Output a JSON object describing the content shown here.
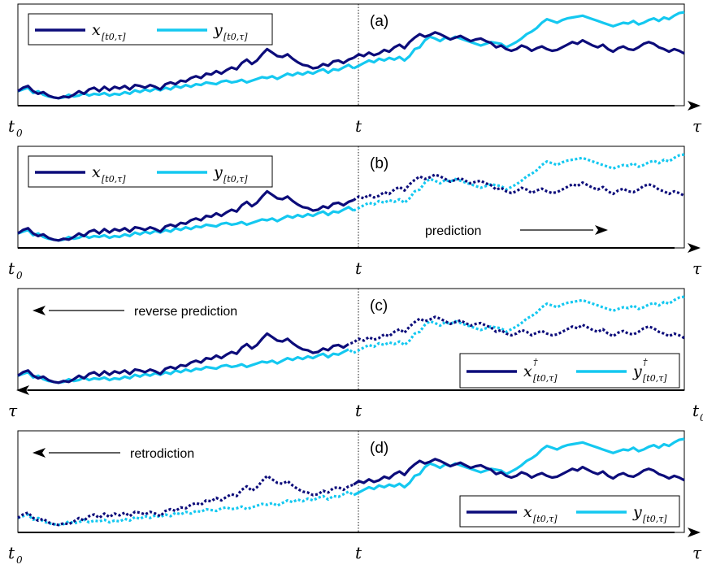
{
  "colors": {
    "x": "#0c0c7a",
    "y": "#14c8f0",
    "axis": "#000000"
  },
  "chart_data": [
    {
      "type": "line",
      "panel_label": "(a)",
      "x_labels": {
        "left": "t",
        "left_sub": "0",
        "mid": "t",
        "right": "τ",
        "right_sub": ""
      },
      "legend": {
        "position": "top-left",
        "x_label": "x",
        "x_sub": "[t0,τ]",
        "x_sup": "",
        "y_label": "y",
        "y_sub": "[t0,τ]",
        "y_sup": ""
      },
      "annotation": {
        "text": "",
        "direction": ""
      },
      "axis_arrow": "right",
      "style": {
        "left": "solid",
        "right": "solid"
      }
    },
    {
      "type": "line",
      "panel_label": "(b)",
      "x_labels": {
        "left": "t",
        "left_sub": "0",
        "mid": "t",
        "right": "τ",
        "right_sub": ""
      },
      "legend": {
        "position": "top-left",
        "x_label": "x",
        "x_sub": "[t0,τ]",
        "x_sup": "",
        "y_label": "y",
        "y_sub": "[t0,τ]",
        "y_sup": ""
      },
      "annotation": {
        "text": "prediction",
        "direction": "right"
      },
      "axis_arrow": "right",
      "style": {
        "left": "solid",
        "right": "dotted"
      }
    },
    {
      "type": "line",
      "panel_label": "(c)",
      "x_labels": {
        "left": "τ",
        "left_sub": "",
        "mid": "t",
        "right": "t",
        "right_sub": "0"
      },
      "legend": {
        "position": "bottom-right",
        "x_label": "x",
        "x_sub": "[t0,τ]",
        "x_sup": "†",
        "y_label": "y",
        "y_sub": "[t0,τ]",
        "y_sup": "†"
      },
      "annotation": {
        "text": "reverse prediction",
        "direction": "left"
      },
      "axis_arrow": "left",
      "style": {
        "left": "dotted",
        "right": "solid"
      }
    },
    {
      "type": "line",
      "panel_label": "(d)",
      "x_labels": {
        "left": "t",
        "left_sub": "0",
        "mid": "t",
        "right": "τ",
        "right_sub": ""
      },
      "legend": {
        "position": "bottom-right",
        "x_label": "x",
        "x_sub": "[t0,τ]",
        "x_sup": "",
        "y_label": "y",
        "y_sub": "[t0,τ]",
        "y_sup": ""
      },
      "annotation": {
        "text": "retrodiction",
        "direction": "left"
      },
      "axis_arrow": "right",
      "style": {
        "left": "dotted",
        "right": "solid"
      }
    }
  ],
  "series": {
    "x": [
      0.1,
      0.14,
      0.16,
      0.1,
      0.07,
      0.09,
      0.05,
      0.03,
      0.02,
      0.04,
      0.03,
      0.06,
      0.1,
      0.07,
      0.12,
      0.14,
      0.1,
      0.15,
      0.11,
      0.15,
      0.13,
      0.16,
      0.12,
      0.17,
      0.16,
      0.14,
      0.17,
      0.15,
      0.12,
      0.18,
      0.2,
      0.18,
      0.22,
      0.21,
      0.25,
      0.27,
      0.25,
      0.3,
      0.29,
      0.33,
      0.3,
      0.34,
      0.37,
      0.35,
      0.42,
      0.46,
      0.41,
      0.45,
      0.52,
      0.58,
      0.54,
      0.5,
      0.49,
      0.52,
      0.47,
      0.43,
      0.4,
      0.39,
      0.36,
      0.37,
      0.41,
      0.39,
      0.44,
      0.45,
      0.42,
      0.46,
      0.48,
      0.52,
      0.5,
      0.54,
      0.51,
      0.53,
      0.57,
      0.55,
      0.6,
      0.63,
      0.59,
      0.66,
      0.71,
      0.75,
      0.72,
      0.74,
      0.77,
      0.75,
      0.72,
      0.69,
      0.71,
      0.73,
      0.7,
      0.67,
      0.69,
      0.7,
      0.67,
      0.65,
      0.6,
      0.62,
      0.58,
      0.56,
      0.58,
      0.62,
      0.6,
      0.56,
      0.59,
      0.61,
      0.58,
      0.56,
      0.57,
      0.6,
      0.63,
      0.66,
      0.64,
      0.68,
      0.65,
      0.62,
      0.6,
      0.63,
      0.58,
      0.55,
      0.59,
      0.61,
      0.58,
      0.57,
      0.6,
      0.64,
      0.66,
      0.64,
      0.6,
      0.58,
      0.55,
      0.58,
      0.56,
      0.53
    ],
    "y": [
      0.1,
      0.12,
      0.14,
      0.08,
      0.1,
      0.06,
      0.04,
      0.03,
      0.02,
      0.03,
      0.06,
      0.04,
      0.05,
      0.08,
      0.05,
      0.07,
      0.06,
      0.08,
      0.05,
      0.07,
      0.06,
      0.09,
      0.07,
      0.11,
      0.09,
      0.12,
      0.1,
      0.13,
      0.11,
      0.14,
      0.12,
      0.16,
      0.14,
      0.17,
      0.15,
      0.18,
      0.17,
      0.2,
      0.19,
      0.18,
      0.21,
      0.22,
      0.2,
      0.21,
      0.23,
      0.2,
      0.22,
      0.24,
      0.26,
      0.25,
      0.27,
      0.24,
      0.27,
      0.3,
      0.28,
      0.31,
      0.29,
      0.32,
      0.3,
      0.33,
      0.35,
      0.31,
      0.35,
      0.34,
      0.37,
      0.4,
      0.36,
      0.39,
      0.42,
      0.45,
      0.43,
      0.47,
      0.45,
      0.48,
      0.46,
      0.49,
      0.45,
      0.5,
      0.58,
      0.6,
      0.68,
      0.72,
      0.7,
      0.67,
      0.71,
      0.69,
      0.72,
      0.7,
      0.68,
      0.66,
      0.64,
      0.62,
      0.64,
      0.66,
      0.65,
      0.64,
      0.6,
      0.63,
      0.66,
      0.7,
      0.75,
      0.78,
      0.82,
      0.88,
      0.92,
      0.9,
      0.88,
      0.91,
      0.93,
      0.94,
      0.95,
      0.96,
      0.94,
      0.92,
      0.9,
      0.88,
      0.86,
      0.84,
      0.86,
      0.88,
      0.87,
      0.9,
      0.86,
      0.88,
      0.91,
      0.93,
      0.9,
      0.94,
      0.92,
      0.96,
      0.99,
      1.0
    ],
    "split_index": 66
  }
}
